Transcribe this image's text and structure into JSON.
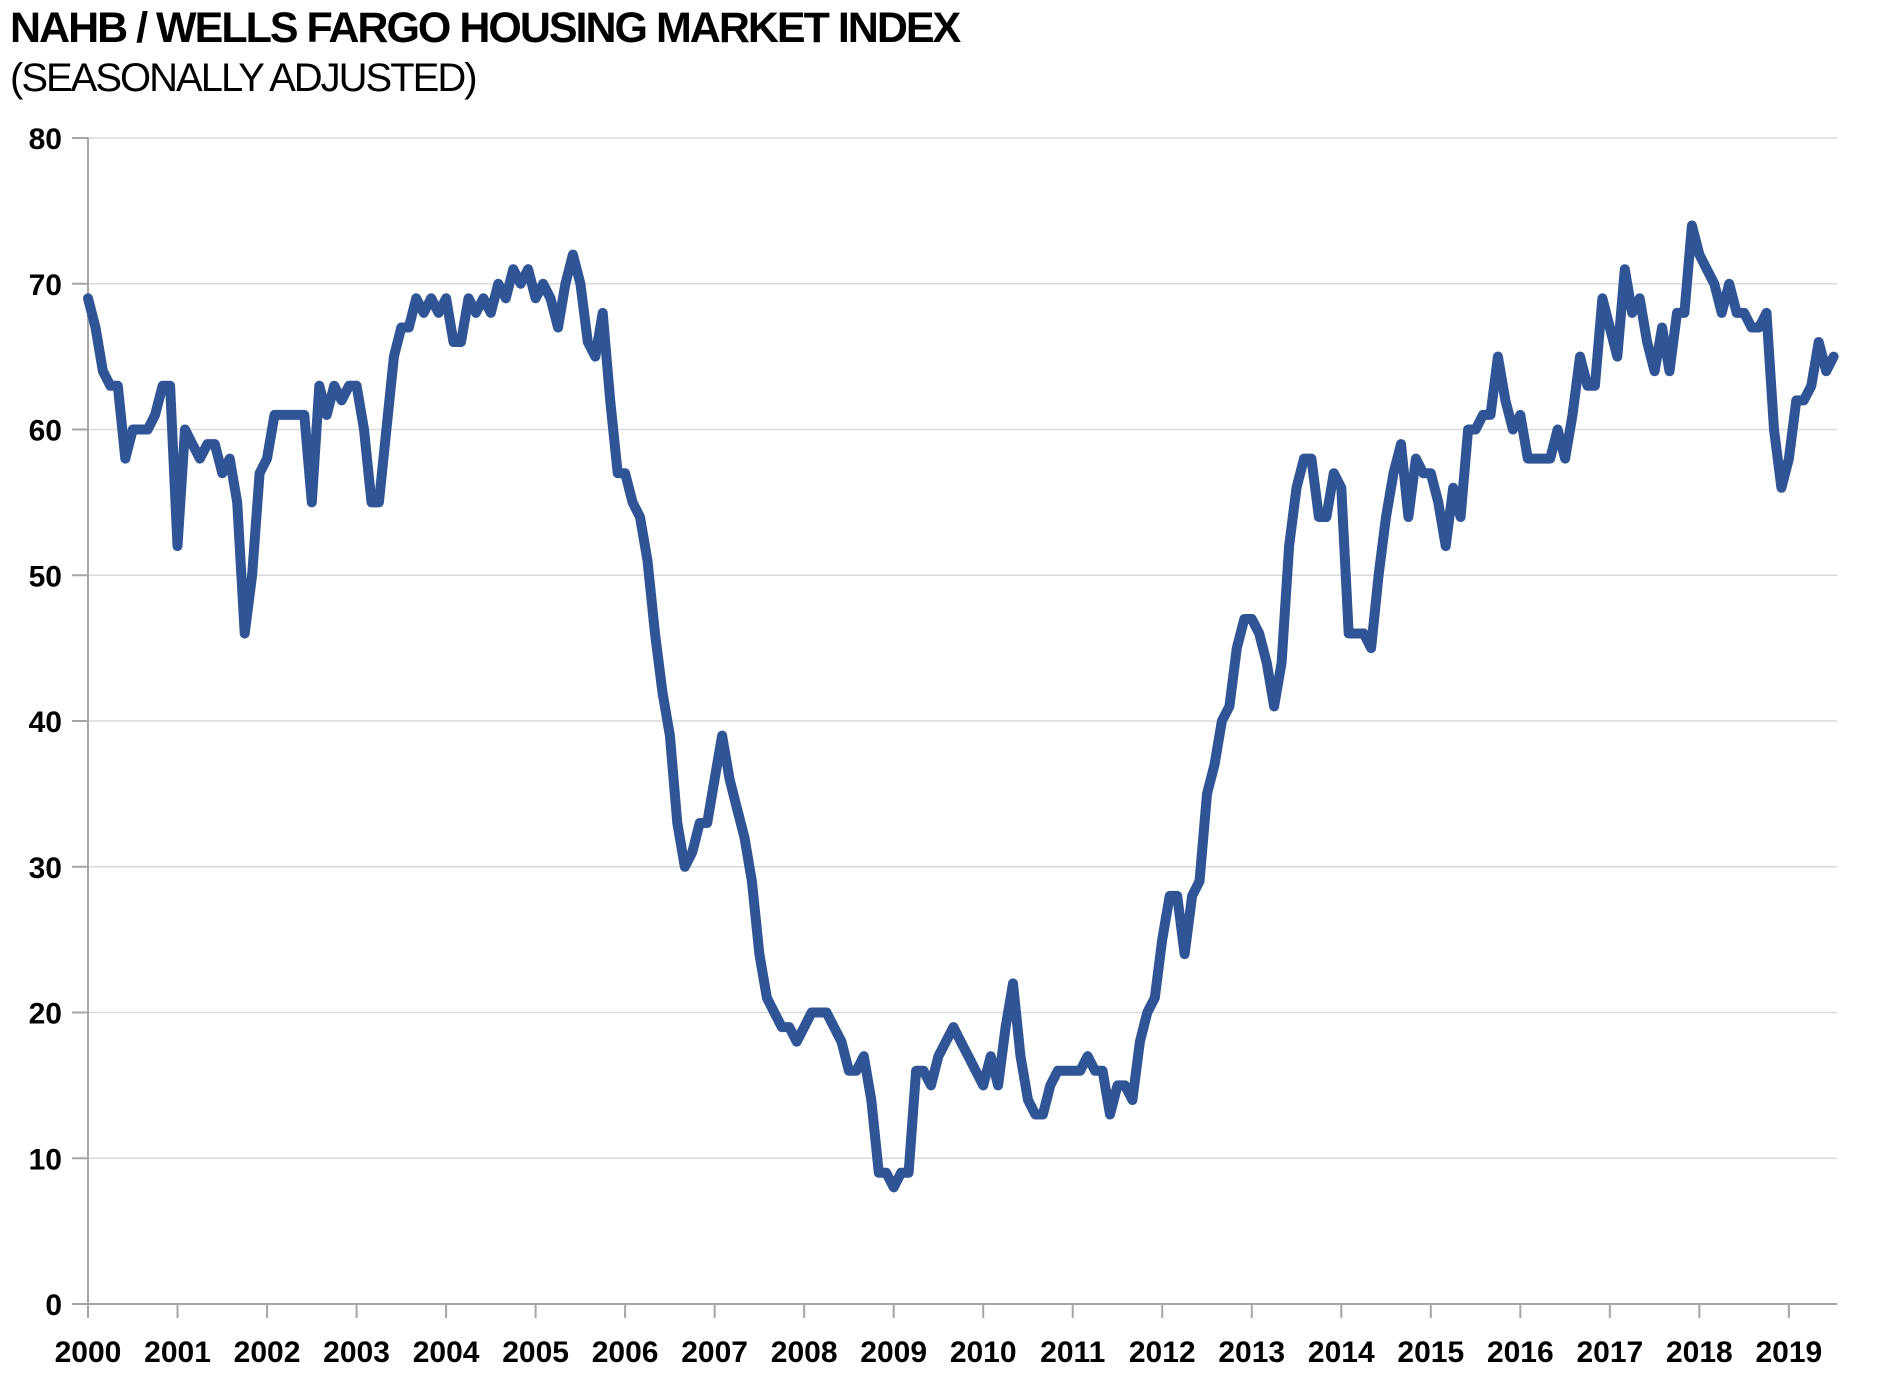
{
  "chart_data": {
    "type": "line",
    "title": "NAHB / WELLS FARGO HOUSING MARKET INDEX",
    "subtitle": "(SEASONALLY ADJUSTED)",
    "legend": "none",
    "grid": "horizontal",
    "ylim": [
      0,
      80
    ],
    "y_ticks": [
      0,
      10,
      20,
      30,
      40,
      50,
      60,
      70,
      80
    ],
    "x_tick_labels": [
      "2000",
      "2001",
      "2002",
      "2003",
      "2004",
      "2005",
      "2006",
      "2007",
      "2008",
      "2009",
      "2010",
      "2011",
      "2012",
      "2013",
      "2014",
      "2015",
      "2016",
      "2017",
      "2018",
      "2019"
    ],
    "series": [
      {
        "name": "Housing Market Index (seasonally adjusted)",
        "frequency": "monthly",
        "start": "2000-01",
        "end": "2019-07",
        "values": [
          69,
          67,
          64,
          63,
          63,
          58,
          60,
          60,
          60,
          61,
          63,
          63,
          52,
          60,
          59,
          58,
          59,
          59,
          57,
          58,
          55,
          46,
          50,
          57,
          58,
          61,
          61,
          61,
          61,
          61,
          55,
          63,
          61,
          63,
          62,
          63,
          63,
          60,
          55,
          55,
          60,
          65,
          67,
          67,
          69,
          68,
          69,
          68,
          69,
          66,
          66,
          69,
          68,
          69,
          68,
          70,
          69,
          71,
          70,
          71,
          69,
          70,
          69,
          67,
          70,
          72,
          70,
          66,
          65,
          68,
          62,
          57,
          57,
          55,
          54,
          51,
          46,
          42,
          39,
          33,
          30,
          31,
          33,
          33,
          36,
          39,
          36,
          34,
          32,
          29,
          24,
          21,
          20,
          19,
          19,
          18,
          19,
          20,
          20,
          20,
          19,
          18,
          16,
          16,
          17,
          14,
          9,
          9,
          8,
          9,
          9,
          16,
          16,
          15,
          17,
          18,
          19,
          18,
          17,
          16,
          15,
          17,
          15,
          19,
          22,
          17,
          14,
          13,
          13,
          15,
          16,
          16,
          16,
          16,
          17,
          16,
          16,
          13,
          15,
          15,
          14,
          18,
          20,
          21,
          25,
          28,
          28,
          24,
          28,
          29,
          35,
          37,
          40,
          41,
          45,
          47,
          47,
          46,
          44,
          41,
          44,
          52,
          56,
          58,
          58,
          54,
          54,
          57,
          56,
          46,
          46,
          46,
          45,
          50,
          54,
          57,
          59,
          54,
          58,
          57,
          57,
          55,
          52,
          56,
          54,
          60,
          60,
          61,
          61,
          65,
          62,
          60,
          61,
          58,
          58,
          58,
          58,
          60,
          58,
          61,
          65,
          63,
          63,
          69,
          67,
          65,
          71,
          68,
          69,
          66,
          64,
          67,
          64,
          68,
          68,
          74,
          72,
          71,
          70,
          68,
          70,
          68,
          68,
          67,
          67,
          68,
          60,
          56,
          58,
          62,
          62,
          63,
          66,
          64,
          65
        ]
      }
    ],
    "colors": {
      "line": "#2F5597",
      "grid": "#D9D9D9",
      "axis": "#A6A6A6",
      "text": "#000000",
      "background": "#FFFFFF"
    }
  }
}
